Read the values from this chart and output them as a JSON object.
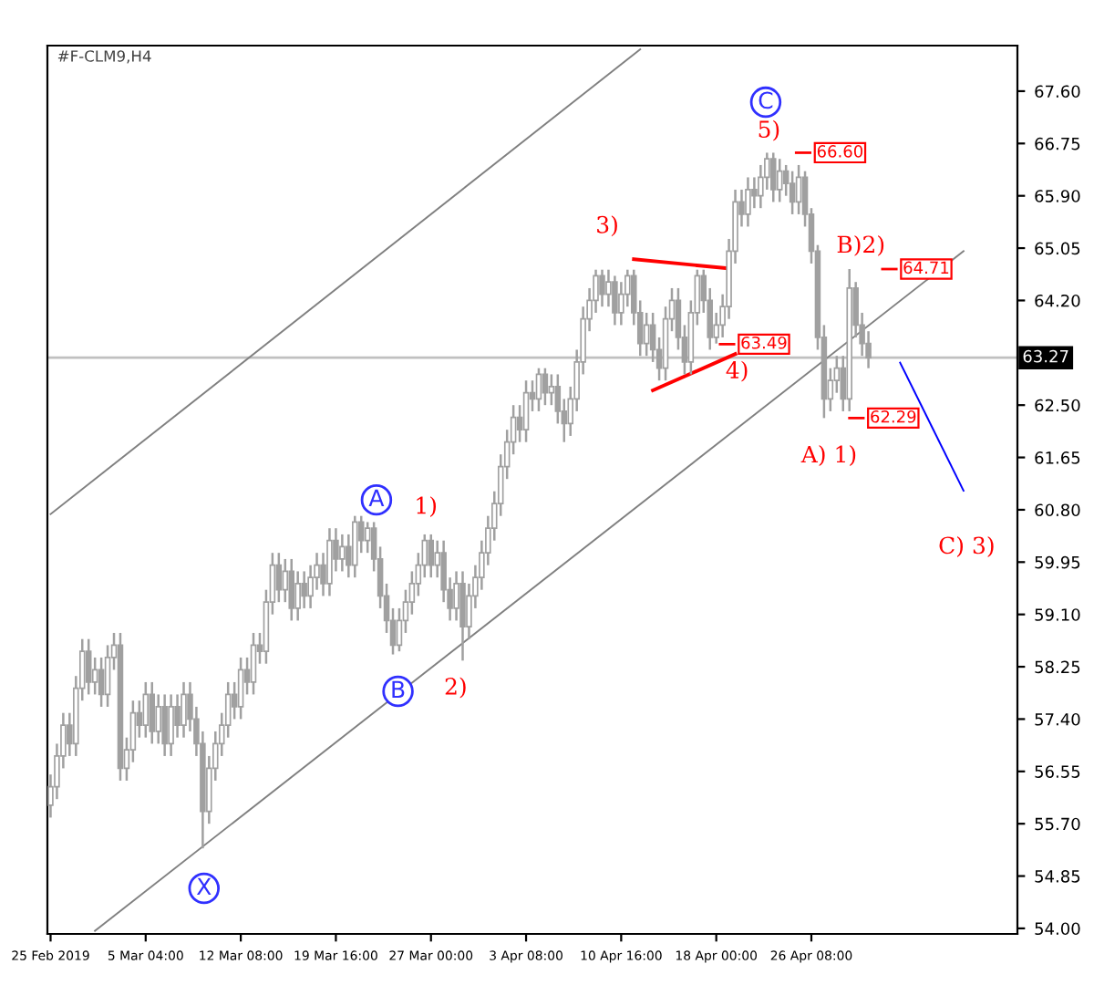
{
  "chart_data": {
    "type": "candlestick",
    "title": "#F-CLM9,H4",
    "color": "#a0a0a0",
    "categories": [
      "25 Feb 2019",
      null,
      null,
      null,
      null,
      null,
      null,
      null,
      null,
      null,
      null,
      null,
      null,
      null,
      null,
      "5 Mar 04:00",
      null,
      null,
      null,
      null,
      null,
      null,
      null,
      null,
      null,
      null,
      null,
      null,
      null,
      null,
      "12 Mar 08:00",
      null,
      null,
      null,
      null,
      null,
      null,
      null,
      null,
      null,
      null,
      null,
      null,
      null,
      null,
      "19 Mar 16:00",
      null,
      null,
      null,
      null,
      null,
      null,
      null,
      null,
      null,
      null,
      null,
      null,
      null,
      null,
      "27 Mar 00:00",
      null,
      null,
      null,
      null,
      null,
      null,
      null,
      null,
      null,
      null,
      null,
      null,
      null,
      null,
      "3 Apr 08:00",
      null,
      null,
      null,
      null,
      null,
      null,
      null,
      null,
      null,
      null,
      null,
      null,
      null,
      null,
      "10 Apr 16:00",
      null,
      null,
      null,
      null,
      null,
      null,
      null,
      null,
      null,
      null,
      null,
      null,
      null,
      null,
      "18 Apr 00:00",
      null,
      null,
      null,
      null,
      null,
      null,
      null,
      null,
      null,
      null,
      null,
      null,
      null,
      null,
      "26 Apr 08:00",
      null,
      null,
      null,
      null,
      null,
      null,
      null,
      null,
      null,
      null,
      null,
      null,
      null,
      null,
      null,
      null,
      null,
      null,
      null,
      null,
      null,
      null,
      null,
      null,
      null,
      null,
      null,
      null,
      null,
      null,
      null,
      null
    ],
    "ohlc": [
      [
        56.0,
        56.5,
        55.8,
        56.3
      ],
      [
        56.3,
        57.0,
        56.1,
        56.8
      ],
      [
        56.8,
        57.5,
        56.6,
        57.3
      ],
      [
        57.3,
        57.5,
        56.8,
        57.0
      ],
      [
        57.0,
        58.1,
        56.8,
        57.9
      ],
      [
        57.9,
        58.7,
        57.7,
        58.5
      ],
      [
        58.5,
        58.7,
        57.8,
        58.0
      ],
      [
        58.0,
        58.4,
        57.8,
        58.2
      ],
      [
        58.2,
        58.4,
        57.6,
        57.8
      ],
      [
        57.8,
        58.6,
        57.6,
        58.4
      ],
      [
        58.4,
        58.8,
        58.2,
        58.6
      ],
      [
        58.6,
        58.8,
        56.4,
        56.6
      ],
      [
        56.6,
        57.1,
        56.4,
        56.9
      ],
      [
        56.9,
        57.7,
        56.7,
        57.5
      ],
      [
        57.5,
        57.7,
        57.1,
        57.3
      ],
      [
        57.3,
        58.0,
        57.1,
        57.8
      ],
      [
        57.8,
        58.0,
        57.0,
        57.2
      ],
      [
        57.2,
        57.8,
        57.0,
        57.6
      ],
      [
        57.6,
        57.8,
        56.8,
        57.0
      ],
      [
        57.0,
        57.8,
        56.8,
        57.6
      ],
      [
        57.6,
        57.8,
        57.1,
        57.3
      ],
      [
        57.3,
        58.0,
        57.1,
        57.8
      ],
      [
        57.8,
        58.0,
        57.2,
        57.4
      ],
      [
        57.4,
        57.6,
        56.8,
        57.0
      ],
      [
        57.0,
        57.2,
        55.3,
        55.9
      ],
      [
        55.9,
        56.8,
        55.7,
        56.6
      ],
      [
        56.6,
        57.2,
        56.4,
        57.0
      ],
      [
        57.0,
        57.5,
        56.8,
        57.3
      ],
      [
        57.3,
        58.0,
        57.1,
        57.8
      ],
      [
        57.8,
        58.0,
        57.4,
        57.6
      ],
      [
        57.6,
        58.4,
        57.4,
        58.2
      ],
      [
        58.2,
        58.4,
        57.8,
        58.0
      ],
      [
        58.0,
        58.8,
        57.8,
        58.6
      ],
      [
        58.6,
        58.8,
        58.3,
        58.5
      ],
      [
        58.5,
        59.5,
        58.3,
        59.3
      ],
      [
        59.3,
        60.1,
        59.1,
        59.9
      ],
      [
        59.9,
        60.1,
        59.3,
        59.5
      ],
      [
        59.5,
        60.0,
        59.3,
        59.8
      ],
      [
        59.8,
        60.0,
        59.0,
        59.2
      ],
      [
        59.2,
        59.8,
        59.0,
        59.6
      ],
      [
        59.6,
        59.8,
        59.2,
        59.4
      ],
      [
        59.4,
        59.9,
        59.2,
        59.7
      ],
      [
        59.7,
        60.1,
        59.5,
        59.9
      ],
      [
        59.9,
        60.1,
        59.4,
        59.6
      ],
      [
        59.6,
        60.5,
        59.4,
        60.3
      ],
      [
        60.3,
        60.5,
        59.8,
        60.0
      ],
      [
        60.0,
        60.4,
        59.8,
        60.2
      ],
      [
        60.2,
        60.4,
        59.7,
        59.9
      ],
      [
        59.9,
        60.7,
        59.7,
        60.6
      ],
      [
        60.6,
        60.7,
        60.1,
        60.3
      ],
      [
        60.3,
        60.6,
        60.1,
        60.5
      ],
      [
        60.5,
        60.6,
        59.8,
        60.0
      ],
      [
        60.0,
        60.2,
        59.2,
        59.4
      ],
      [
        59.4,
        59.6,
        58.8,
        59.0
      ],
      [
        59.0,
        59.2,
        58.45,
        58.6
      ],
      [
        58.6,
        59.2,
        58.5,
        59.0
      ],
      [
        59.0,
        59.5,
        58.8,
        59.3
      ],
      [
        59.3,
        59.8,
        59.1,
        59.6
      ],
      [
        59.6,
        60.1,
        59.4,
        59.9
      ],
      [
        59.9,
        60.4,
        59.7,
        60.3
      ],
      [
        60.3,
        60.4,
        59.7,
        59.9
      ],
      [
        59.9,
        60.3,
        59.7,
        60.1
      ],
      [
        60.1,
        60.3,
        59.3,
        59.5
      ],
      [
        59.5,
        59.7,
        59.0,
        59.2
      ],
      [
        59.2,
        59.8,
        59.0,
        59.6
      ],
      [
        59.6,
        59.8,
        58.35,
        58.9
      ],
      [
        58.9,
        59.6,
        58.7,
        59.4
      ],
      [
        59.4,
        59.9,
        59.2,
        59.7
      ],
      [
        59.7,
        60.3,
        59.5,
        60.1
      ],
      [
        60.1,
        60.7,
        59.9,
        60.5
      ],
      [
        60.5,
        61.1,
        60.3,
        60.9
      ],
      [
        60.9,
        61.7,
        60.7,
        61.5
      ],
      [
        61.5,
        62.1,
        61.3,
        61.9
      ],
      [
        61.9,
        62.5,
        61.7,
        62.3
      ],
      [
        62.3,
        62.5,
        61.9,
        62.1
      ],
      [
        62.1,
        62.9,
        61.9,
        62.7
      ],
      [
        62.7,
        62.9,
        62.4,
        62.6
      ],
      [
        62.6,
        63.1,
        62.4,
        63.0
      ],
      [
        63.0,
        63.1,
        62.5,
        62.7
      ],
      [
        62.7,
        63.0,
        62.5,
        62.8
      ],
      [
        62.8,
        63.0,
        62.2,
        62.4
      ],
      [
        62.4,
        62.6,
        61.9,
        62.2
      ],
      [
        62.2,
        62.8,
        62.0,
        62.6
      ],
      [
        62.6,
        63.4,
        62.4,
        63.2
      ],
      [
        63.2,
        64.1,
        63.0,
        63.9
      ],
      [
        63.9,
        64.4,
        63.7,
        64.2
      ],
      [
        64.2,
        64.7,
        64.0,
        64.6
      ],
      [
        64.6,
        64.7,
        64.1,
        64.3
      ],
      [
        64.3,
        64.7,
        64.1,
        64.5
      ],
      [
        64.5,
        64.6,
        63.8,
        64.0
      ],
      [
        64.0,
        64.5,
        63.8,
        64.3
      ],
      [
        64.3,
        64.7,
        64.1,
        64.6
      ],
      [
        64.6,
        64.7,
        63.8,
        64.0
      ],
      [
        64.0,
        64.2,
        63.3,
        63.5
      ],
      [
        63.5,
        64.0,
        63.3,
        63.8
      ],
      [
        63.8,
        64.0,
        63.2,
        63.4
      ],
      [
        63.4,
        63.6,
        62.9,
        63.1
      ],
      [
        63.1,
        64.1,
        62.9,
        63.9
      ],
      [
        63.9,
        64.4,
        63.7,
        64.2
      ],
      [
        64.2,
        64.4,
        63.4,
        63.6
      ],
      [
        63.6,
        63.8,
        63.0,
        63.2
      ],
      [
        63.2,
        64.2,
        63.0,
        64.0
      ],
      [
        64.0,
        64.7,
        63.8,
        64.6
      ],
      [
        64.6,
        64.7,
        64.0,
        64.2
      ],
      [
        64.2,
        64.4,
        63.4,
        63.6
      ],
      [
        63.6,
        64.0,
        63.5,
        63.8
      ],
      [
        63.8,
        64.3,
        63.6,
        64.1
      ],
      [
        64.1,
        65.2,
        63.9,
        65.0
      ],
      [
        65.0,
        66.0,
        64.8,
        65.8
      ],
      [
        65.8,
        66.0,
        65.4,
        65.6
      ],
      [
        65.6,
        66.2,
        65.4,
        66.0
      ],
      [
        66.0,
        66.2,
        65.7,
        65.9
      ],
      [
        65.9,
        66.4,
        65.7,
        66.2
      ],
      [
        66.2,
        66.6,
        66.0,
        66.5
      ],
      [
        66.5,
        66.6,
        65.8,
        66.0
      ],
      [
        66.0,
        66.5,
        65.8,
        66.3
      ],
      [
        66.3,
        66.4,
        65.9,
        66.1
      ],
      [
        66.1,
        66.3,
        65.6,
        65.8
      ],
      [
        65.8,
        66.4,
        65.6,
        66.2
      ],
      [
        66.2,
        66.3,
        65.4,
        65.6
      ],
      [
        65.6,
        65.7,
        64.8,
        65.0
      ],
      [
        65.0,
        65.1,
        63.4,
        63.6
      ],
      [
        63.6,
        63.8,
        62.29,
        62.6
      ],
      [
        62.6,
        63.1,
        62.4,
        62.9
      ],
      [
        62.9,
        63.3,
        62.7,
        63.1
      ],
      [
        63.1,
        63.3,
        62.4,
        62.6
      ],
      [
        62.6,
        64.71,
        62.4,
        64.4
      ],
      [
        64.4,
        64.5,
        63.6,
        63.8
      ],
      [
        63.8,
        64.0,
        63.3,
        63.5
      ],
      [
        63.5,
        63.7,
        63.1,
        63.27
      ],
      null,
      null,
      null,
      null,
      null,
      null,
      null,
      null,
      null,
      null,
      null,
      null,
      null,
      null,
      null,
      null,
      null,
      null,
      null,
      null,
      null,
      null,
      null
    ],
    "series": [
      {
        "type": "line",
        "color": "#808080",
        "values": [
          null,
          null,
          null,
          null,
          null,
          null,
          null,
          53.96,
          null,
          null,
          null,
          null,
          null,
          null,
          null,
          null,
          null,
          null,
          null,
          null,
          null,
          null,
          null,
          null,
          null,
          null,
          null,
          null,
          null,
          null,
          null,
          null,
          null,
          null,
          null,
          null,
          null,
          null,
          null,
          null,
          null,
          null,
          null,
          null,
          null,
          null,
          null,
          null,
          null,
          null,
          null,
          null,
          null,
          null,
          null,
          null,
          null,
          null,
          null,
          null,
          null,
          null,
          null,
          null,
          null,
          null,
          null,
          null,
          null,
          null,
          null,
          null,
          null,
          null,
          null,
          null,
          null,
          null,
          null,
          null,
          null,
          null,
          null,
          null,
          null,
          null,
          null,
          null,
          null,
          null,
          null,
          null,
          null,
          null,
          null,
          null,
          null,
          null,
          null,
          null,
          null,
          null,
          null,
          null,
          null,
          null,
          null,
          null,
          null,
          null,
          null,
          null,
          null,
          null,
          null,
          null,
          null,
          null,
          null,
          null,
          null,
          null,
          null,
          null,
          null,
          null,
          null,
          null,
          null,
          null,
          null,
          null,
          null,
          null,
          null,
          null,
          null,
          null,
          null,
          null,
          null,
          null,
          null,
          null,
          65.0,
          null,
          null,
          null,
          null,
          null,
          null,
          null,
          null
        ]
      },
      {
        "type": "line",
        "color": "#808080",
        "values": [
          60.73,
          null,
          null,
          null,
          null,
          null,
          null,
          null,
          null,
          null,
          null,
          null,
          null,
          null,
          null,
          null,
          null,
          null,
          null,
          null,
          null,
          null,
          null,
          null,
          null,
          null,
          null,
          null,
          null,
          null,
          null,
          null,
          null,
          null,
          null,
          null,
          null,
          null,
          null,
          null,
          null,
          null,
          null,
          null,
          null,
          null,
          null,
          null,
          null,
          null,
          null,
          null,
          null,
          null,
          null,
          null,
          null,
          null,
          null,
          null,
          null,
          null,
          null,
          null,
          null,
          null,
          null,
          null,
          null,
          null,
          null,
          null,
          null,
          null,
          null,
          null,
          null,
          null,
          null,
          null,
          null,
          null,
          null,
          null,
          null,
          null,
          null,
          null,
          null,
          null,
          null,
          null,
          null,
          68.28,
          null,
          null,
          null,
          null,
          null,
          null,
          null,
          null,
          null,
          null,
          null,
          null,
          null,
          null,
          null,
          null,
          null,
          null,
          null,
          null,
          null,
          null,
          null,
          null,
          null,
          null,
          null,
          null,
          null,
          null,
          null,
          null,
          null,
          null,
          null,
          null,
          null,
          null,
          null,
          null,
          null,
          null,
          null,
          null,
          null,
          null,
          null,
          null,
          null,
          null,
          null,
          null,
          null,
          null,
          null,
          null,
          null,
          null,
          null
        ]
      },
      {
        "type": "line",
        "color": "#ff0000",
        "values": [
          null,
          null,
          null,
          null,
          null,
          null,
          null,
          null,
          null,
          null,
          null,
          null,
          null,
          null,
          null,
          null,
          null,
          null,
          null,
          null,
          null,
          null,
          null,
          null,
          null,
          null,
          null,
          null,
          null,
          null,
          null,
          null,
          null,
          null,
          null,
          null,
          null,
          null,
          null,
          null,
          null,
          null,
          null,
          null,
          null,
          null,
          null,
          null,
          null,
          null,
          null,
          null,
          null,
          null,
          null,
          null,
          null,
          null,
          null,
          null,
          null,
          null,
          null,
          null,
          null,
          null,
          null,
          null,
          null,
          null,
          null,
          null,
          null,
          null,
          null,
          null,
          null,
          null,
          null,
          null,
          null,
          null,
          null,
          null,
          null,
          null,
          null,
          null,
          null,
          null,
          null,
          null,
          64.87,
          null,
          null,
          null,
          null,
          null,
          null,
          null,
          null,
          null,
          null,
          null,
          null,
          null,
          null,
          64.72,
          null,
          null,
          null,
          null,
          null,
          null,
          null,
          null,
          null,
          null,
          null,
          null,
          null,
          null,
          null,
          null,
          null,
          null,
          null,
          null,
          null,
          null,
          null,
          null,
          null,
          null,
          null,
          null,
          null,
          null,
          null,
          null,
          null,
          null,
          null,
          null,
          null,
          null,
          null,
          null,
          null,
          null,
          null,
          null,
          null
        ]
      },
      {
        "type": "line",
        "color": "#ff0000",
        "values": [
          null,
          null,
          null,
          null,
          null,
          null,
          null,
          null,
          null,
          null,
          null,
          null,
          null,
          null,
          null,
          null,
          null,
          null,
          null,
          null,
          null,
          null,
          null,
          null,
          null,
          null,
          null,
          null,
          null,
          null,
          null,
          null,
          null,
          null,
          null,
          null,
          null,
          null,
          null,
          null,
          null,
          null,
          null,
          null,
          null,
          null,
          null,
          null,
          null,
          null,
          null,
          null,
          null,
          null,
          null,
          null,
          null,
          null,
          null,
          null,
          null,
          null,
          null,
          null,
          null,
          null,
          null,
          null,
          null,
          null,
          null,
          null,
          null,
          null,
          null,
          null,
          null,
          null,
          null,
          null,
          null,
          null,
          null,
          null,
          null,
          null,
          null,
          null,
          null,
          null,
          null,
          null,
          null,
          null,
          null,
          62.74,
          null,
          null,
          null,
          null,
          null,
          null,
          null,
          null,
          null,
          null,
          null,
          null,
          63.33,
          null,
          null,
          null,
          null,
          null,
          null,
          null,
          null,
          null,
          null,
          null,
          null,
          null,
          null,
          null,
          null,
          null,
          null,
          null,
          null,
          null,
          null,
          null,
          null,
          null,
          null,
          null,
          null,
          null,
          null,
          null,
          null,
          null,
          null,
          null,
          null,
          null,
          null,
          null,
          null,
          null,
          null,
          null,
          null
        ]
      },
      {
        "type": "line",
        "color": "#0000ff",
        "values": [
          null,
          null,
          null,
          null,
          null,
          null,
          null,
          null,
          null,
          null,
          null,
          null,
          null,
          null,
          null,
          null,
          null,
          null,
          null,
          null,
          null,
          null,
          null,
          null,
          null,
          null,
          null,
          null,
          null,
          null,
          null,
          null,
          null,
          null,
          null,
          null,
          null,
          null,
          null,
          null,
          null,
          null,
          null,
          null,
          null,
          null,
          null,
          null,
          null,
          null,
          null,
          null,
          null,
          null,
          null,
          null,
          null,
          null,
          null,
          null,
          null,
          null,
          null,
          null,
          null,
          null,
          null,
          null,
          null,
          null,
          null,
          null,
          null,
          null,
          null,
          null,
          null,
          null,
          null,
          null,
          null,
          null,
          null,
          null,
          null,
          null,
          null,
          null,
          null,
          null,
          null,
          null,
          null,
          null,
          null,
          null,
          null,
          null,
          null,
          null,
          null,
          null,
          null,
          null,
          null,
          null,
          null,
          null,
          null,
          null,
          null,
          null,
          null,
          null,
          null,
          null,
          null,
          null,
          null,
          null,
          null,
          null,
          null,
          null,
          null,
          null,
          null,
          null,
          null,
          null,
          null,
          null,
          null,
          null,
          63.19,
          null,
          null,
          null,
          null,
          null,
          null,
          null,
          null,
          null,
          61.11,
          null,
          null,
          null,
          null,
          null,
          null,
          null,
          null
        ]
      }
    ],
    "ylim": [
      53.91,
      68.34
    ],
    "yticks": [
      {
        "value": 67.6,
        "label": "67.60"
      },
      {
        "value": 66.75,
        "label": "66.75"
      },
      {
        "value": 65.9,
        "label": "65.90"
      },
      {
        "value": 65.05,
        "label": "65.05"
      },
      {
        "value": 64.2,
        "label": "64.20"
      },
      {
        "value": 62.5,
        "label": "62.50"
      },
      {
        "value": 61.65,
        "label": "61.65"
      },
      {
        "value": 60.8,
        "label": "60.80"
      },
      {
        "value": 59.95,
        "label": "59.95"
      },
      {
        "value": 59.1,
        "label": "59.10"
      },
      {
        "value": 58.25,
        "label": "58.25"
      },
      {
        "value": 57.4,
        "label": "57.40"
      },
      {
        "value": 56.55,
        "label": "56.55"
      },
      {
        "value": 55.7,
        "label": "55.70"
      },
      {
        "value": 54.85,
        "label": "54.85"
      },
      {
        "value": 54.0,
        "label": "54.00"
      }
    ],
    "ref_lines": [
      {
        "axis": "y",
        "value": 63.27,
        "label": "63.27",
        "color": "#c0c0c0"
      }
    ],
    "annotations": [
      "X",
      "B",
      "A",
      "C",
      "2)",
      "1)",
      "3)",
      "5)",
      "4)",
      "A) 1)",
      "B)2)",
      "C) 3)",
      {
        "text": "66.60",
        "y": 66.6
      },
      {
        "text": "64.71",
        "y": 64.71
      },
      {
        "text": "63.49",
        "y": 63.49
      },
      {
        "text": "62.29",
        "y": 62.29
      }
    ]
  }
}
